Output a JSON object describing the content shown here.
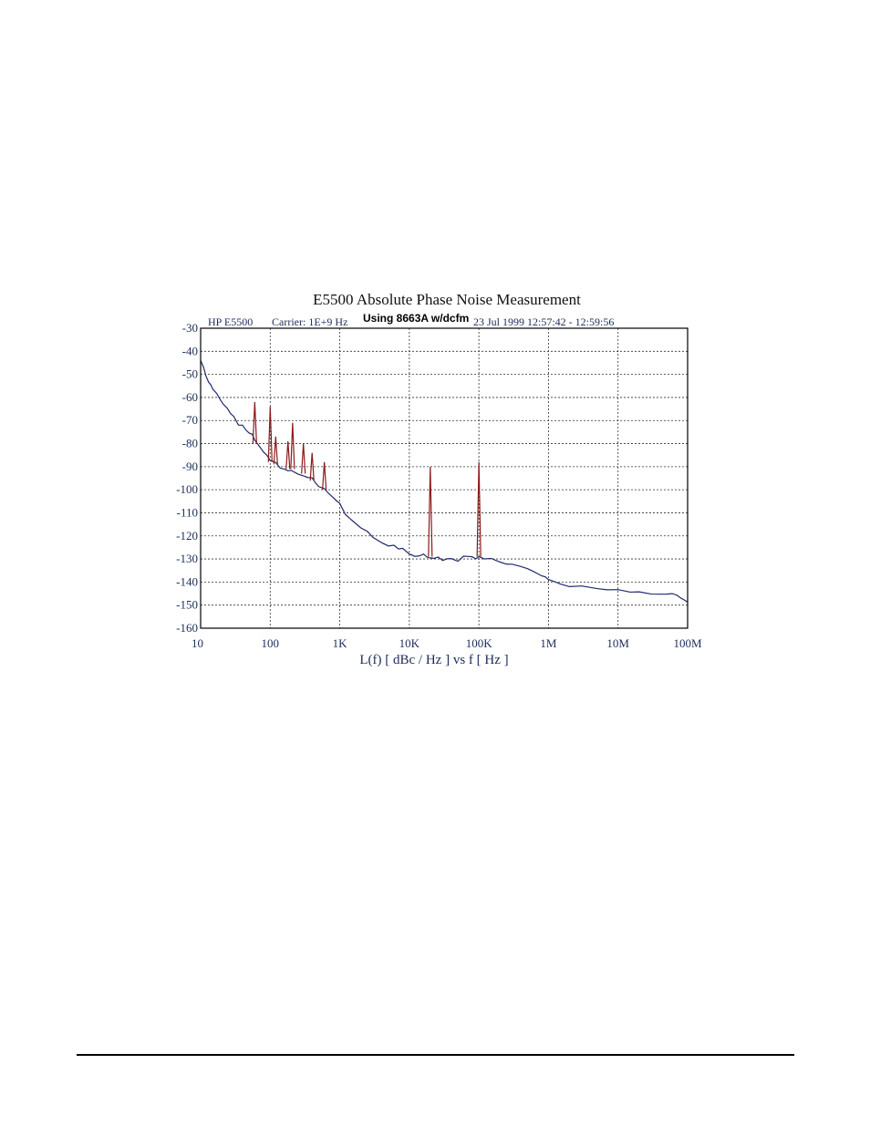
{
  "chart_data": {
    "type": "line",
    "title": "E5500 Absolute Phase Noise Measurement",
    "header": {
      "instrument": "HP E5500",
      "carrier": "Carrier: 1E+9 Hz",
      "note": "Using 8663A w/dcfm",
      "timestamp": "23 Jul 1999  12:57:42 - 12:59:56"
    },
    "xlabel": "L(f)  [ dBc / Hz ]  vs  f  [ Hz ]",
    "xscale": "log",
    "xlim": [
      10,
      100000000
    ],
    "ylim": [
      -160,
      -30
    ],
    "grid": true,
    "x_ticks": [
      {
        "value": 10,
        "label": "10"
      },
      {
        "value": 100,
        "label": "100"
      },
      {
        "value": 1000,
        "label": "1K"
      },
      {
        "value": 10000,
        "label": "10K"
      },
      {
        "value": 100000,
        "label": "100K"
      },
      {
        "value": 1000000,
        "label": "1M"
      },
      {
        "value": 10000000,
        "label": "10M"
      },
      {
        "value": 100000000,
        "label": "100M"
      }
    ],
    "y_ticks": [
      {
        "value": -30,
        "label": "-30"
      },
      {
        "value": -40,
        "label": "-40"
      },
      {
        "value": -50,
        "label": "-50"
      },
      {
        "value": -60,
        "label": "-60"
      },
      {
        "value": -70,
        "label": "-70"
      },
      {
        "value": -80,
        "label": "-80"
      },
      {
        "value": -90,
        "label": "-90"
      },
      {
        "value": -100,
        "label": "-100"
      },
      {
        "value": -110,
        "label": "-110"
      },
      {
        "value": -120,
        "label": "-120"
      },
      {
        "value": -130,
        "label": "-130"
      },
      {
        "value": -140,
        "label": "-140"
      },
      {
        "value": -150,
        "label": "-150"
      },
      {
        "value": -160,
        "label": "-160"
      }
    ],
    "series": [
      {
        "color": "#1f2a6b",
        "x": [
          10,
          11,
          12,
          13,
          14,
          15,
          17,
          19,
          21,
          24,
          27,
          30,
          35,
          40,
          45,
          50,
          55,
          60,
          70,
          80,
          90,
          100,
          120,
          140,
          160,
          180,
          200,
          250,
          300,
          350,
          400,
          450,
          500,
          600,
          700,
          800,
          900,
          1000,
          1200,
          1500,
          2000,
          2500,
          3000,
          4000,
          5000,
          6000,
          7000,
          8000,
          10000,
          12000,
          14000,
          16000,
          18000,
          20000,
          23000,
          26000,
          30000,
          35000,
          40000,
          50000,
          60000,
          70000,
          80000,
          90000,
          100000,
          120000,
          150000,
          200000,
          250000,
          300000,
          400000,
          500000,
          600000,
          700000,
          800000,
          900000,
          1000000,
          1200000,
          1500000,
          2000000,
          3000000,
          5000000,
          7000000,
          10000000,
          15000000,
          20000000,
          30000000,
          40000000,
          50000000,
          60000000,
          70000000,
          80000000,
          90000000,
          100000000
        ],
        "y": [
          -44,
          -48,
          -51,
          -54,
          -55,
          -57,
          -59,
          -61,
          -62,
          -64,
          -67,
          -68,
          -71,
          -72,
          -74,
          -76,
          -77,
          -79,
          -82,
          -84,
          -86,
          -88,
          -89,
          -90,
          -90,
          -91,
          -91,
          -92,
          -93,
          -94,
          -96,
          -98,
          -99,
          -100,
          -102,
          -104,
          -106,
          -107,
          -110,
          -113,
          -116,
          -118,
          -120,
          -122,
          -124,
          -125,
          -126,
          -126,
          -128,
          -129,
          -129,
          -128,
          -129,
          -129,
          -129,
          -129,
          -130,
          -129,
          -129,
          -130,
          -129,
          -129,
          -130,
          -130,
          -129,
          -130,
          -130,
          -131,
          -132,
          -132,
          -133,
          -134,
          -135,
          -136,
          -137,
          -138,
          -139,
          -140,
          -141,
          -142,
          -142,
          -143,
          -143,
          -143,
          -144,
          -144,
          -145,
          -145,
          -145,
          -145,
          -146,
          -147,
          -148,
          -149
        ]
      }
    ],
    "spurs": {
      "color": "#8b1a1a",
      "items": [
        {
          "f": 60,
          "level": -62,
          "base": -80
        },
        {
          "f": 100,
          "level": -64,
          "base": -88
        },
        {
          "f": 120,
          "level": -77,
          "base": -89
        },
        {
          "f": 180,
          "level": -79,
          "base": -91
        },
        {
          "f": 210,
          "level": -71,
          "base": -91
        },
        {
          "f": 300,
          "level": -80,
          "base": -93
        },
        {
          "f": 400,
          "level": -84,
          "base": -96
        },
        {
          "f": 600,
          "level": -88,
          "base": -100
        },
        {
          "f": 20000,
          "level": -90,
          "base": -129
        },
        {
          "f": 100000,
          "level": -88,
          "base": -129
        }
      ]
    }
  }
}
